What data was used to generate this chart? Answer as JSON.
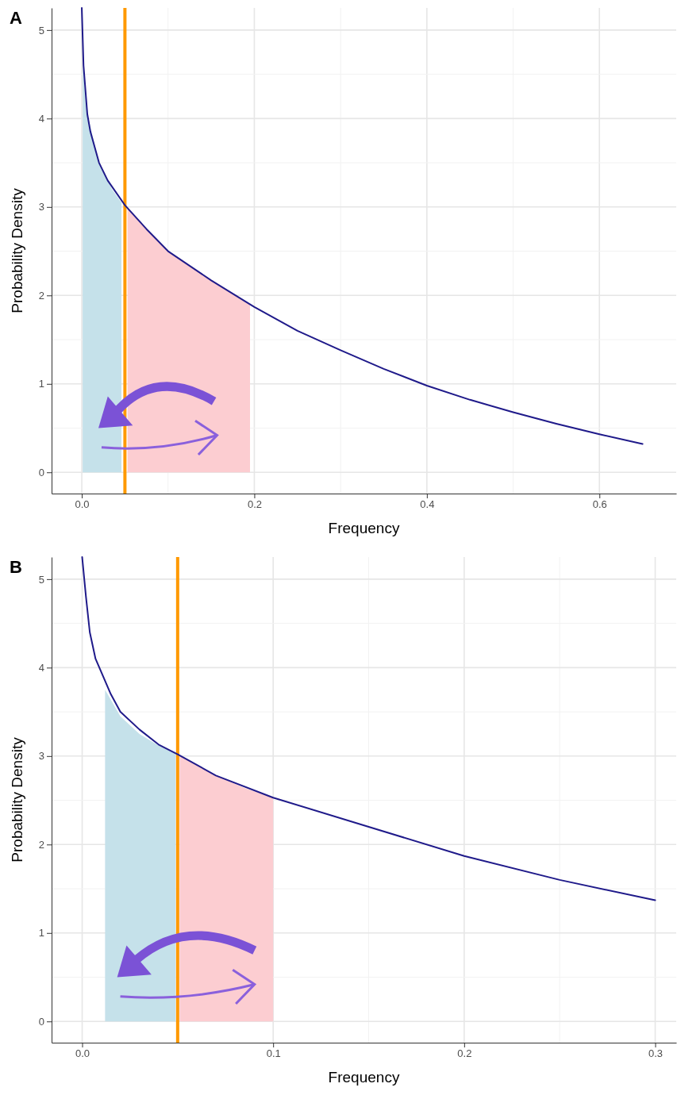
{
  "chart_data": [
    {
      "type": "line",
      "title": "A",
      "xlabel": "Frequency",
      "ylabel": "Probability Density",
      "xlim": [
        -0.035,
        0.689
      ],
      "ylim": [
        -0.24,
        5.25
      ],
      "xticks": [
        {
          "value": 0,
          "label": "0.0"
        },
        0.2,
        0.4,
        0.6
      ],
      "yticks": [
        0,
        1,
        2,
        3,
        4,
        5
      ],
      "grid": true,
      "ref_lines": [
        {
          "axis": "x",
          "value": 0.05,
          "color": "#ff9900"
        }
      ],
      "series": [
        {
          "type": "area",
          "color": "#c5e1ea",
          "x": [
            0.001,
            0.0064,
            0.02,
            0.035,
            0.046
          ],
          "values": [
            4.6,
            4.05,
            3.5,
            3.2,
            3.05
          ]
        },
        {
          "type": "area",
          "color": "#fccdd1",
          "x": [
            0.053,
            0.1,
            0.15,
            0.195
          ],
          "values": [
            2.98,
            2.5,
            2.17,
            1.9
          ]
        },
        {
          "type": "line",
          "color": "#1f1a8a",
          "x": [
            0,
            0.002,
            0.0064,
            0.01,
            0.02,
            0.03,
            0.05,
            0.075,
            0.1,
            0.15,
            0.2,
            0.25,
            0.3,
            0.35,
            0.4,
            0.45,
            0.5,
            0.55,
            0.6,
            0.65
          ],
          "values": [
            5.25,
            4.6,
            4.05,
            3.85,
            3.5,
            3.3,
            3.02,
            2.75,
            2.5,
            2.17,
            1.87,
            1.6,
            1.38,
            1.17,
            0.98,
            0.82,
            0.68,
            0.55,
            0.43,
            0.32
          ]
        }
      ]
    },
    {
      "type": "line",
      "title": "B",
      "xlabel": "Frequency",
      "ylabel": "Probability Density",
      "xlim": [
        -0.016,
        0.311
      ],
      "ylim": [
        -0.24,
        5.25
      ],
      "xticks": [
        {
          "value": 0,
          "label": "0.0"
        },
        0.1,
        0.2,
        0.3
      ],
      "yticks": [
        0,
        1,
        2,
        3,
        4,
        5
      ],
      "grid": true,
      "ref_lines": [
        {
          "axis": "x",
          "value": 0.05,
          "color": "#ff9900"
        }
      ],
      "series": [
        {
          "type": "area",
          "color": "#c5e1ea",
          "x": [
            0.012,
            0.02,
            0.03,
            0.04,
            0.049
          ],
          "values": [
            3.75,
            3.45,
            3.25,
            3.12,
            3.03
          ]
        },
        {
          "type": "area",
          "color": "#fccdd1",
          "x": [
            0.051,
            0.07,
            0.085,
            0.1
          ],
          "values": [
            3.01,
            2.78,
            2.64,
            2.53
          ]
        },
        {
          "type": "line",
          "color": "#1f1a8a",
          "x": [
            0,
            0.002,
            0.004,
            0.007,
            0.01,
            0.015,
            0.02,
            0.03,
            0.04,
            0.05,
            0.07,
            0.1,
            0.15,
            0.2,
            0.25,
            0.3
          ],
          "values": [
            5.25,
            4.8,
            4.4,
            4.1,
            3.95,
            3.7,
            3.5,
            3.3,
            3.13,
            3.02,
            2.78,
            2.53,
            2.2,
            1.87,
            1.6,
            1.37
          ]
        }
      ]
    }
  ]
}
